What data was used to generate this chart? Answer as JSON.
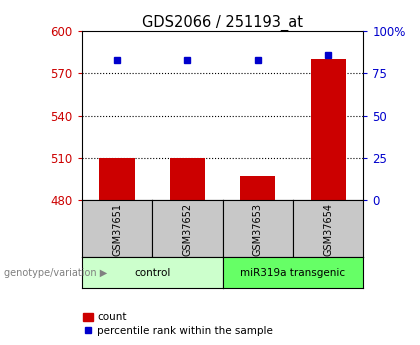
{
  "title": "GDS2066 / 251193_at",
  "samples": [
    "GSM37651",
    "GSM37652",
    "GSM37653",
    "GSM37654"
  ],
  "bar_values": [
    510,
    510,
    497,
    580
  ],
  "bar_bottom": 480,
  "scatter_values": [
    83,
    83,
    83,
    86
  ],
  "bar_color": "#cc0000",
  "scatter_color": "#0000cc",
  "ylim_left": [
    480,
    600
  ],
  "ylim_right": [
    0,
    100
  ],
  "yticks_left": [
    480,
    510,
    540,
    570,
    600
  ],
  "yticks_right": [
    0,
    25,
    50,
    75,
    100
  ],
  "ytick_labels_right": [
    "0",
    "25",
    "50",
    "75",
    "100%"
  ],
  "left_tick_color": "#cc0000",
  "right_tick_color": "#0000cc",
  "groups": [
    {
      "label": "control",
      "samples": [
        0,
        1
      ],
      "color": "#ccffcc"
    },
    {
      "label": "miR319a transgenic",
      "samples": [
        2,
        3
      ],
      "color": "#66ff66"
    }
  ],
  "group_label": "genotype/variation",
  "legend_bar_label": "count",
  "legend_scatter_label": "percentile rank within the sample",
  "background_color": "#ffffff",
  "header_row_color": "#c8c8c8",
  "bar_width": 0.5,
  "x_positions": [
    1,
    2,
    3,
    4
  ]
}
